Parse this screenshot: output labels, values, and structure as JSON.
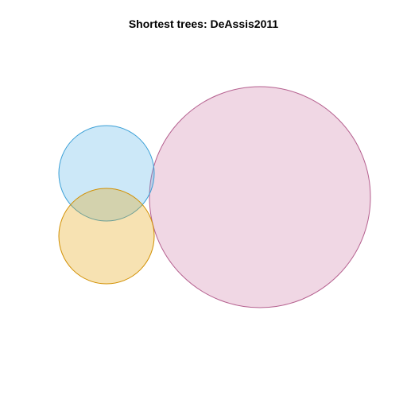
{
  "title": "Shortest trees: DeAssis2011",
  "diagram": {
    "type": "venn",
    "sets": [
      {
        "id": "set-blue",
        "fill": "#56B4E9",
        "stroke": "#3A9FD6"
      },
      {
        "id": "set-orange",
        "fill": "#E69F00",
        "stroke": "#D18F00"
      },
      {
        "id": "set-pink",
        "fill": "#CC79A7",
        "stroke": "#B5608F"
      }
    ],
    "fill_opacity": 0.3
  }
}
